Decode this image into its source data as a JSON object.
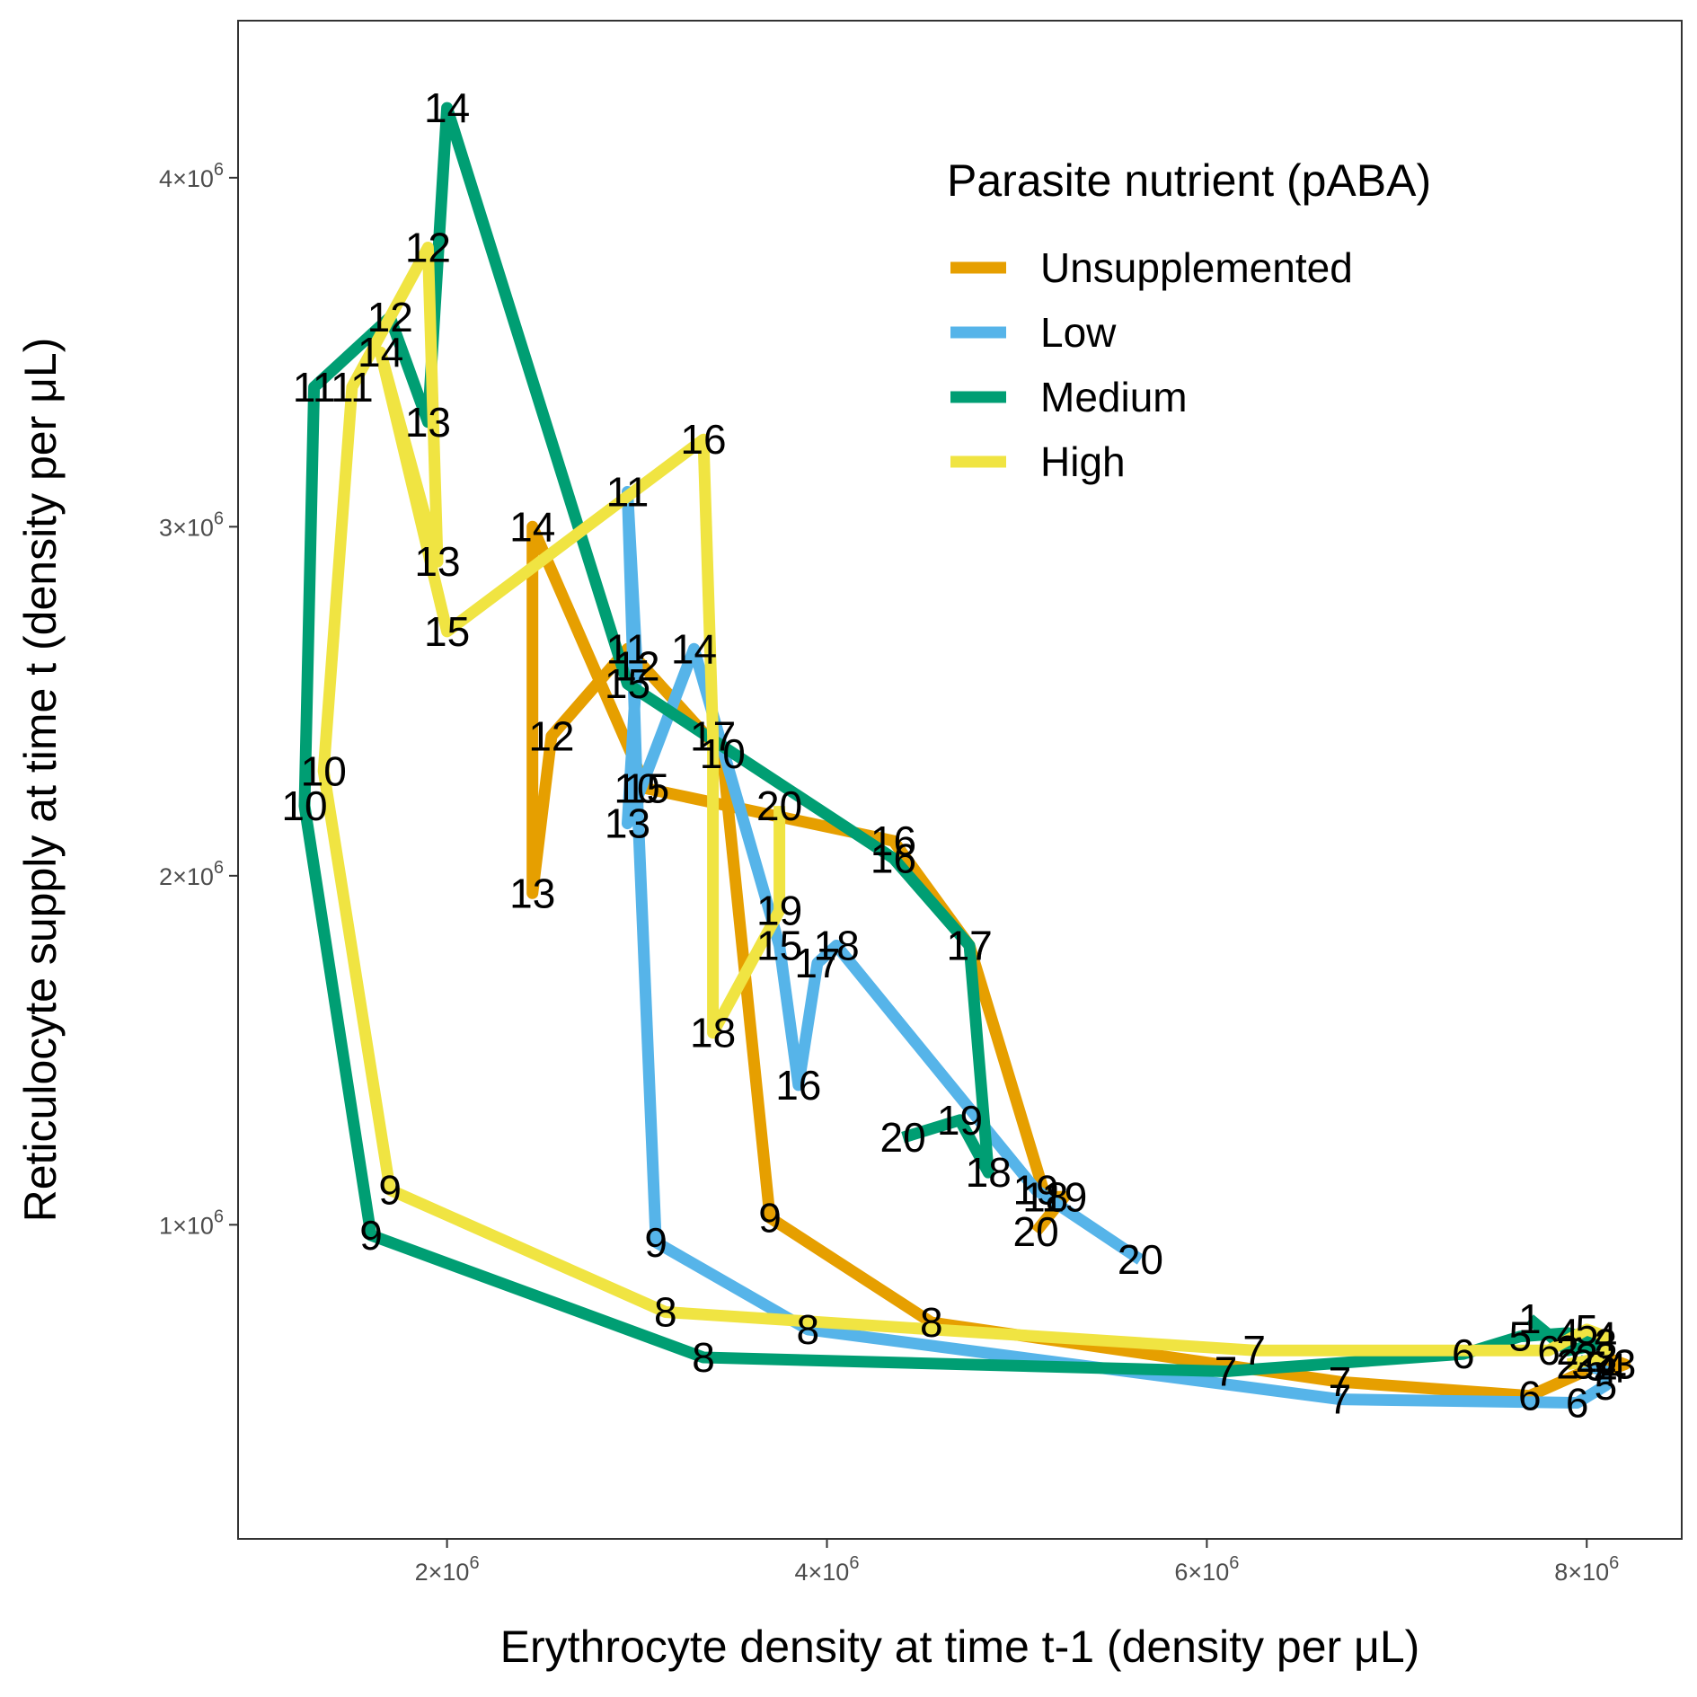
{
  "chart_data": {
    "type": "line",
    "xlabel": "Erythrocyte density at time t-1 (density per μL)",
    "ylabel": "Reticulocyte supply at time t (density per μL)",
    "xlim": [
      900000,
      8500000
    ],
    "ylim": [
      100000,
      4450000
    ],
    "x_ticks": [
      {
        "value": 2000000,
        "base": "2",
        "exp": "6"
      },
      {
        "value": 4000000,
        "base": "4",
        "exp": "6"
      },
      {
        "value": 6000000,
        "base": "6",
        "exp": "6"
      },
      {
        "value": 8000000,
        "base": "8",
        "exp": "6"
      }
    ],
    "y_ticks": [
      {
        "value": 1000000,
        "base": "1",
        "exp": "6"
      },
      {
        "value": 2000000,
        "base": "2",
        "exp": "6"
      },
      {
        "value": 3000000,
        "base": "3",
        "exp": "6"
      },
      {
        "value": 4000000,
        "base": "4",
        "exp": "6"
      }
    ],
    "grid": false,
    "legend": {
      "title": "Parasite nutrient (pABA)",
      "position": "top-right"
    },
    "series": [
      {
        "name": "Unsupplemented",
        "color": "#E69F00",
        "points": [
          {
            "day": "2",
            "x": 8100000,
            "y": 620000
          },
          {
            "day": "3",
            "x": 8200000,
            "y": 600000
          },
          {
            "day": "4",
            "x": 8150000,
            "y": 590000
          },
          {
            "day": "5",
            "x": 8050000,
            "y": 595000
          },
          {
            "day": "6",
            "x": 7700000,
            "y": 510000
          },
          {
            "day": "7",
            "x": 6700000,
            "y": 550000
          },
          {
            "day": "8",
            "x": 4550000,
            "y": 720000
          },
          {
            "day": "9",
            "x": 3700000,
            "y": 1020000
          },
          {
            "day": "10",
            "x": 3450000,
            "y": 2350000
          },
          {
            "day": "11",
            "x": 2950000,
            "y": 2650000
          },
          {
            "day": "12",
            "x": 2550000,
            "y": 2400000
          },
          {
            "day": "13",
            "x": 2450000,
            "y": 1950000
          },
          {
            "day": "14",
            "x": 2450000,
            "y": 3000000
          },
          {
            "day": "15",
            "x": 3050000,
            "y": 2250000
          },
          {
            "day": "16",
            "x": 4350000,
            "y": 2100000
          },
          {
            "day": "17",
            "x": 4750000,
            "y": 1800000
          },
          {
            "day": "18",
            "x": 5150000,
            "y": 1080000
          },
          {
            "day": "19",
            "x": 5250000,
            "y": 1080000
          },
          {
            "day": "20",
            "x": 5100000,
            "y": 980000
          }
        ]
      },
      {
        "name": "Low",
        "color": "#56B4E9",
        "points": [
          {
            "day": "2",
            "x": 8000000,
            "y": 620000
          },
          {
            "day": "3",
            "x": 7980000,
            "y": 600000
          },
          {
            "day": "4",
            "x": 8100000,
            "y": 580000
          },
          {
            "day": "5",
            "x": 8100000,
            "y": 540000
          },
          {
            "day": "6",
            "x": 7950000,
            "y": 490000
          },
          {
            "day": "7",
            "x": 6700000,
            "y": 500000
          },
          {
            "day": "8",
            "x": 3900000,
            "y": 700000
          },
          {
            "day": "9",
            "x": 3100000,
            "y": 950000
          },
          {
            "day": "10",
            "x": 3000000,
            "y": 2250000
          },
          {
            "day": "11",
            "x": 2950000,
            "y": 3100000
          },
          {
            "day": "12",
            "x": 3000000,
            "y": 2600000
          },
          {
            "day": "13",
            "x": 2950000,
            "y": 2150000
          },
          {
            "day": "14",
            "x": 3300000,
            "y": 2650000
          },
          {
            "day": "15",
            "x": 3750000,
            "y": 1800000
          },
          {
            "day": "16",
            "x": 3850000,
            "y": 1400000
          },
          {
            "day": "17",
            "x": 3950000,
            "y": 1750000
          },
          {
            "day": "18",
            "x": 4050000,
            "y": 1800000
          },
          {
            "day": "19",
            "x": 5100000,
            "y": 1100000
          },
          {
            "day": "20",
            "x": 5650000,
            "y": 900000
          }
        ]
      },
      {
        "name": "Medium",
        "color": "#009E73",
        "points": [
          {
            "day": "1",
            "x": 7700000,
            "y": 730000
          },
          {
            "day": "2",
            "x": 7900000,
            "y": 640000
          },
          {
            "day": "3",
            "x": 8100000,
            "y": 660000
          },
          {
            "day": "4",
            "x": 7900000,
            "y": 690000
          },
          {
            "day": "5",
            "x": 7650000,
            "y": 680000
          },
          {
            "day": "6",
            "x": 7350000,
            "y": 630000
          },
          {
            "day": "7",
            "x": 6100000,
            "y": 580000
          },
          {
            "day": "8",
            "x": 3350000,
            "y": 620000
          },
          {
            "day": "9",
            "x": 1600000,
            "y": 970000
          },
          {
            "day": "10",
            "x": 1250000,
            "y": 2200000
          },
          {
            "day": "11",
            "x": 1300000,
            "y": 3400000
          },
          {
            "day": "12",
            "x": 1700000,
            "y": 3600000
          },
          {
            "day": "13",
            "x": 1900000,
            "y": 3300000
          },
          {
            "day": "14",
            "x": 2000000,
            "y": 4200000
          },
          {
            "day": "15",
            "x": 2950000,
            "y": 2550000
          },
          {
            "day": "16",
            "x": 4350000,
            "y": 2050000
          },
          {
            "day": "17",
            "x": 4750000,
            "y": 1800000
          },
          {
            "day": "18",
            "x": 4850000,
            "y": 1150000
          },
          {
            "day": "19",
            "x": 4700000,
            "y": 1300000
          },
          {
            "day": "20",
            "x": 4400000,
            "y": 1250000
          }
        ]
      },
      {
        "name": "High",
        "color": "#F0E442",
        "points": [
          {
            "day": "2",
            "x": 7900000,
            "y": 600000
          },
          {
            "day": "3",
            "x": 8100000,
            "y": 620000
          },
          {
            "day": "4",
            "x": 8100000,
            "y": 680000
          },
          {
            "day": "5",
            "x": 8000000,
            "y": 700000
          },
          {
            "day": "6",
            "x": 7800000,
            "y": 640000
          },
          {
            "day": "7",
            "x": 6250000,
            "y": 640000
          },
          {
            "day": "8",
            "x": 3150000,
            "y": 750000
          },
          {
            "day": "9",
            "x": 1700000,
            "y": 1100000
          },
          {
            "day": "10",
            "x": 1350000,
            "y": 2300000
          },
          {
            "day": "11",
            "x": 1500000,
            "y": 3400000
          },
          {
            "day": "12",
            "x": 1900000,
            "y": 3800000
          },
          {
            "day": "13",
            "x": 1950000,
            "y": 2900000
          },
          {
            "day": "14",
            "x": 1650000,
            "y": 3500000
          },
          {
            "day": "15",
            "x": 2000000,
            "y": 2700000
          },
          {
            "day": "16",
            "x": 3350000,
            "y": 3250000
          },
          {
            "day": "17",
            "x": 3400000,
            "y": 2400000
          },
          {
            "day": "18",
            "x": 3400000,
            "y": 1550000
          },
          {
            "day": "19",
            "x": 3750000,
            "y": 1900000
          },
          {
            "day": "20",
            "x": 3750000,
            "y": 2200000
          }
        ]
      }
    ]
  }
}
